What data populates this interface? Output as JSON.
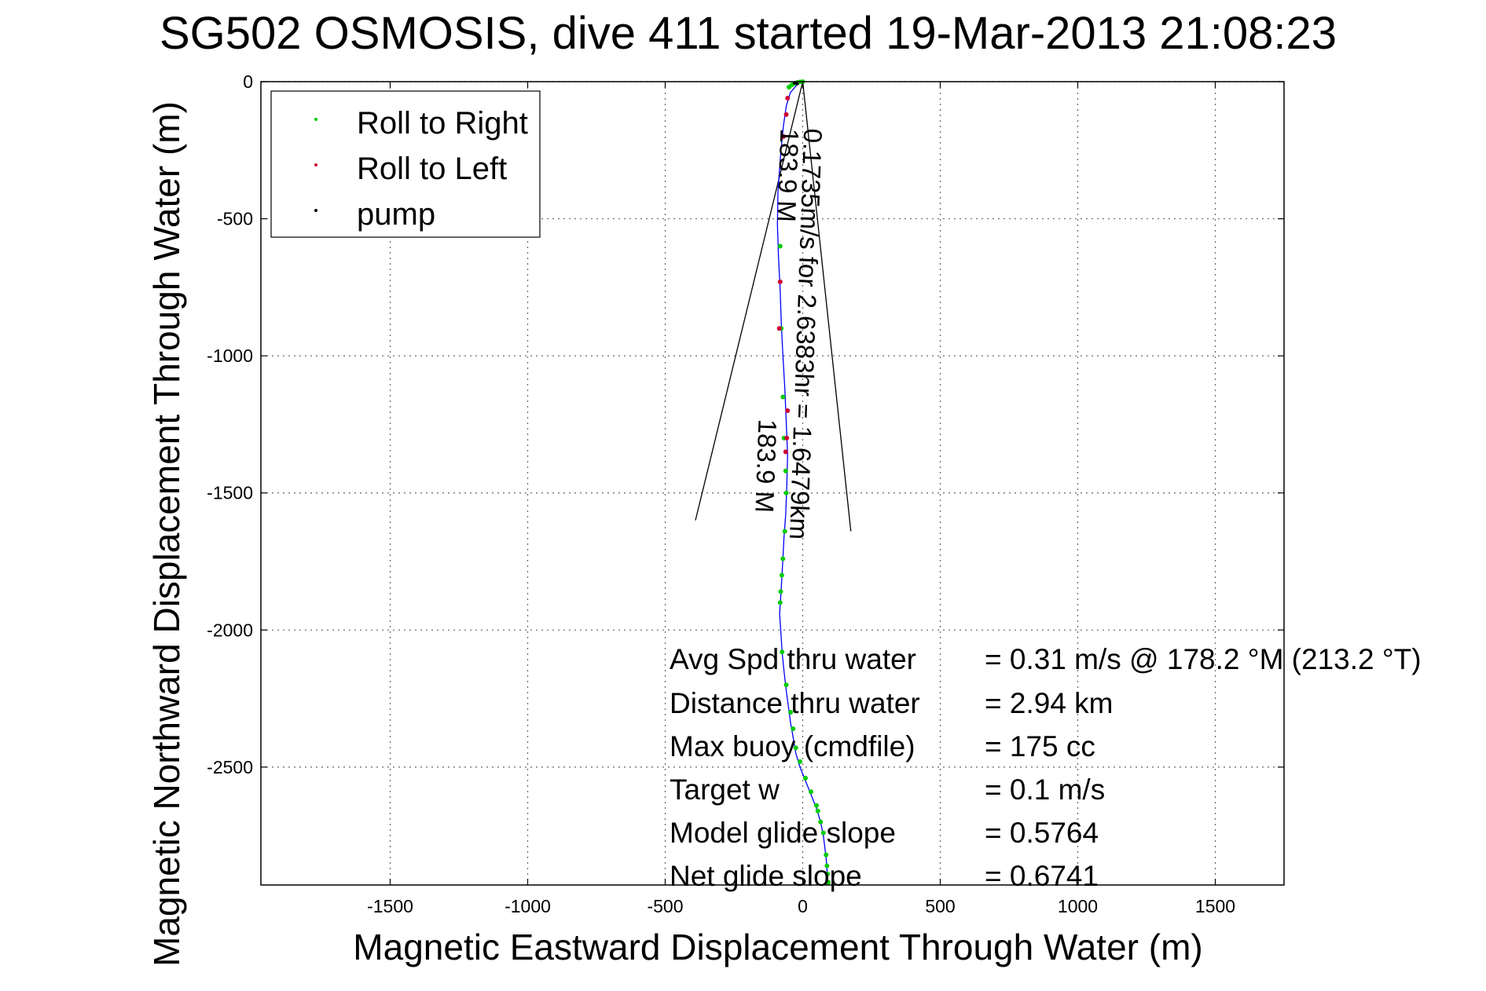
{
  "chart_data": {
    "type": "scatter",
    "title": "SG502 OSMOSIS, dive 411 started 19-Mar-2013 21:08:23",
    "xlabel": "Magnetic Eastward Displacement Through Water (m)",
    "ylabel": "Magnetic Northward Displacement Through Water (m)",
    "xlim": [
      -1970,
      1750
    ],
    "ylim": [
      -2930,
      0
    ],
    "xticks": [
      -1500,
      -1000,
      -500,
      0,
      500,
      1000,
      1500
    ],
    "yticks": [
      0,
      -500,
      -1000,
      -1500,
      -2000,
      -2500
    ],
    "xtick_labels": [
      "-1500",
      "-1000",
      "-500",
      "0",
      "500",
      "1000",
      "1500"
    ],
    "ytick_labels": [
      "0",
      "-500",
      "-1000",
      "-1500",
      "-2000",
      "-2500"
    ],
    "grid": true,
    "legend": {
      "placement": "top-left",
      "entries": [
        {
          "label": "Roll to Right",
          "color": "#00cc00"
        },
        {
          "label": "Roll to Left",
          "color": "#cc0033"
        },
        {
          "label": "pump",
          "color": "#000000"
        }
      ]
    },
    "track": {
      "color": "#0000ff",
      "x": [
        0,
        -20,
        -45,
        -60,
        -70,
        -80,
        -90,
        -92,
        -88,
        -82,
        -78,
        -72,
        -65,
        -60,
        -55,
        -58,
        -62,
        -68,
        -72,
        -76,
        -80,
        -84,
        -80,
        -75,
        -68,
        -60,
        -52,
        -44,
        -35,
        -25,
        -10,
        10,
        30,
        50,
        65,
        75,
        80,
        85,
        88,
        90,
        93
      ],
      "y": [
        0,
        -10,
        -40,
        -90,
        -160,
        -260,
        -400,
        -520,
        -640,
        -760,
        -880,
        -1000,
        -1120,
        -1240,
        -1360,
        -1480,
        -1580,
        -1660,
        -1740,
        -1810,
        -1880,
        -1940,
        -2000,
        -2080,
        -2150,
        -2220,
        -2280,
        -2340,
        -2390,
        -2450,
        -2500,
        -2550,
        -2600,
        -2650,
        -2700,
        -2750,
        -2790,
        -2830,
        -2870,
        -2900,
        -2930
      ]
    },
    "roll_right": {
      "color": "#00cc00",
      "x": [
        -50,
        -40,
        -30,
        -20,
        -10,
        0,
        -82,
        -78,
        -72,
        -68,
        -62,
        -60,
        -65,
        -72,
        -76,
        -80,
        -82,
        -75,
        -60,
        -44,
        -35,
        -25,
        -10,
        10,
        30,
        50,
        55,
        65,
        75,
        85,
        88,
        90,
        93
      ],
      "y": [
        -20,
        -12,
        -6,
        -3,
        -1,
        0,
        -600,
        -900,
        -1150,
        -1300,
        -1420,
        -1500,
        -1640,
        -1740,
        -1800,
        -1860,
        -1900,
        -2080,
        -2200,
        -2300,
        -2360,
        -2430,
        -2480,
        -2540,
        -2590,
        -2640,
        -2660,
        -2700,
        -2740,
        -2820,
        -2860,
        -2890,
        -2920
      ]
    },
    "roll_left": {
      "color": "#cc0033",
      "x": [
        -55,
        -60,
        -70,
        -82,
        -85,
        -55,
        -58,
        -62
      ],
      "y": [
        -60,
        -120,
        -200,
        -730,
        -900,
        -1200,
        -1300,
        -1350
      ]
    },
    "pump": {
      "color": "#000000",
      "x": [
        -30,
        -20
      ],
      "y": [
        -5,
        -8
      ]
    },
    "fan_lines": [
      {
        "x": [
          0,
          -390
        ],
        "y": [
          0,
          -1600
        ]
      },
      {
        "x": [
          0,
          175
        ],
        "y": [
          0,
          -1640
        ]
      }
    ],
    "annotations": [
      {
        "text": "0.1735m/s for 2.6383hr = 1.6479km",
        "x": 5,
        "y": -170,
        "angle": 92
      },
      {
        "text": "183.9 M",
        "x": -80,
        "y": -170,
        "angle": 92
      },
      {
        "text": "183.9 M",
        "x": -160,
        "y": -1230,
        "angle": 92
      }
    ],
    "stats": [
      {
        "label": "Avg Spd thru water",
        "value": "=  0.31 m/s @ 178.2 °M (213.2 °T)"
      },
      {
        "label": "Distance thru water",
        "value": "=  2.94 km"
      },
      {
        "label": "Max buoy (cmdfile)",
        "value": "= 175 cc"
      },
      {
        "label": "Target w",
        "value": "= 0.1 m/s"
      },
      {
        "label": "Model glide slope",
        "value": "= 0.5764"
      },
      {
        "label": "Net glide slope",
        "value": "= 0.6741"
      }
    ]
  }
}
